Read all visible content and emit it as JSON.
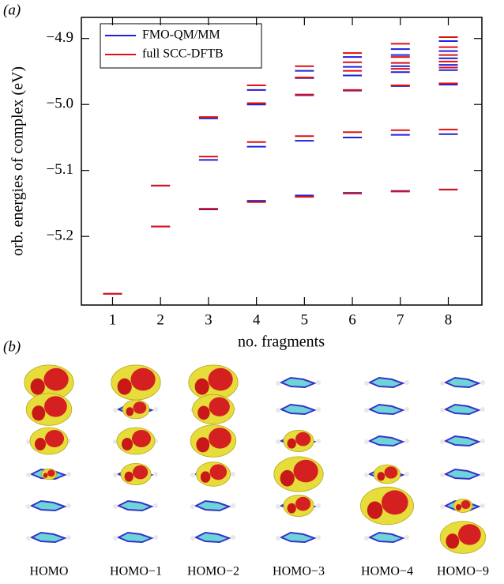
{
  "chart_data": {
    "type": "levels",
    "panel_label": "(a)",
    "x_label": "no. fragments",
    "y_label": "orb. energies of complex (eV)",
    "x": [
      1,
      2,
      3,
      4,
      5,
      6,
      7,
      8
    ],
    "xlim": [
      0.35,
      8.7
    ],
    "xticks": [
      1,
      2,
      3,
      4,
      5,
      6,
      7,
      8
    ],
    "ylim": [
      -5.304,
      -4.868
    ],
    "yticks": [
      {
        "value": -5.2,
        "label": "−5.2"
      },
      {
        "value": -5.1,
        "label": "−5.1"
      },
      {
        "value": -5.0,
        "label": "−5.0"
      },
      {
        "value": -4.9,
        "label": "−4.9"
      }
    ],
    "legend": "upper left",
    "series": [
      {
        "name": "FMO-QM/MM",
        "color": "#2020d8",
        "values": [
          [
            -5.287
          ],
          [
            -5.123,
            -5.185
          ],
          [
            -5.021,
            -5.084,
            -5.159
          ],
          [
            -4.978,
            -5.0,
            -5.064,
            -5.146
          ],
          [
            -4.949,
            -4.96,
            -4.986,
            -5.055,
            -5.138
          ],
          [
            -4.928,
            -4.943,
            -4.956,
            -4.979,
            -5.05,
            -5.134
          ],
          [
            -4.916,
            -4.925,
            -4.942,
            -4.951,
            -4.972,
            -5.046,
            -5.131
          ],
          [
            -4.904,
            -4.919,
            -4.93,
            -4.94,
            -4.948,
            -4.97,
            -5.045,
            -5.129
          ]
        ]
      },
      {
        "name": "full SCC-DFTB",
        "color": "#e01010",
        "values": [
          [
            -5.287
          ],
          [
            -5.123,
            -5.185
          ],
          [
            -5.019,
            -5.079,
            -5.158
          ],
          [
            -4.971,
            -4.998,
            -5.057,
            -5.148
          ],
          [
            -4.942,
            -4.959,
            -4.985,
            -5.048,
            -5.14
          ],
          [
            -4.922,
            -4.936,
            -4.949,
            -4.978,
            -5.042,
            -5.135
          ],
          [
            -4.908,
            -4.928,
            -4.937,
            -4.946,
            -4.971,
            -5.039,
            -5.132
          ],
          [
            -4.898,
            -4.913,
            -4.925,
            -4.935,
            -4.944,
            -4.968,
            -5.038,
            -5.129
          ]
        ]
      }
    ]
  },
  "panel_b": {
    "panel_label": "(b)",
    "captions": [
      "HOMO",
      "HOMO−1",
      "HOMO−2",
      "HOMO−3",
      "HOMO−4",
      "HOMO−9"
    ]
  }
}
